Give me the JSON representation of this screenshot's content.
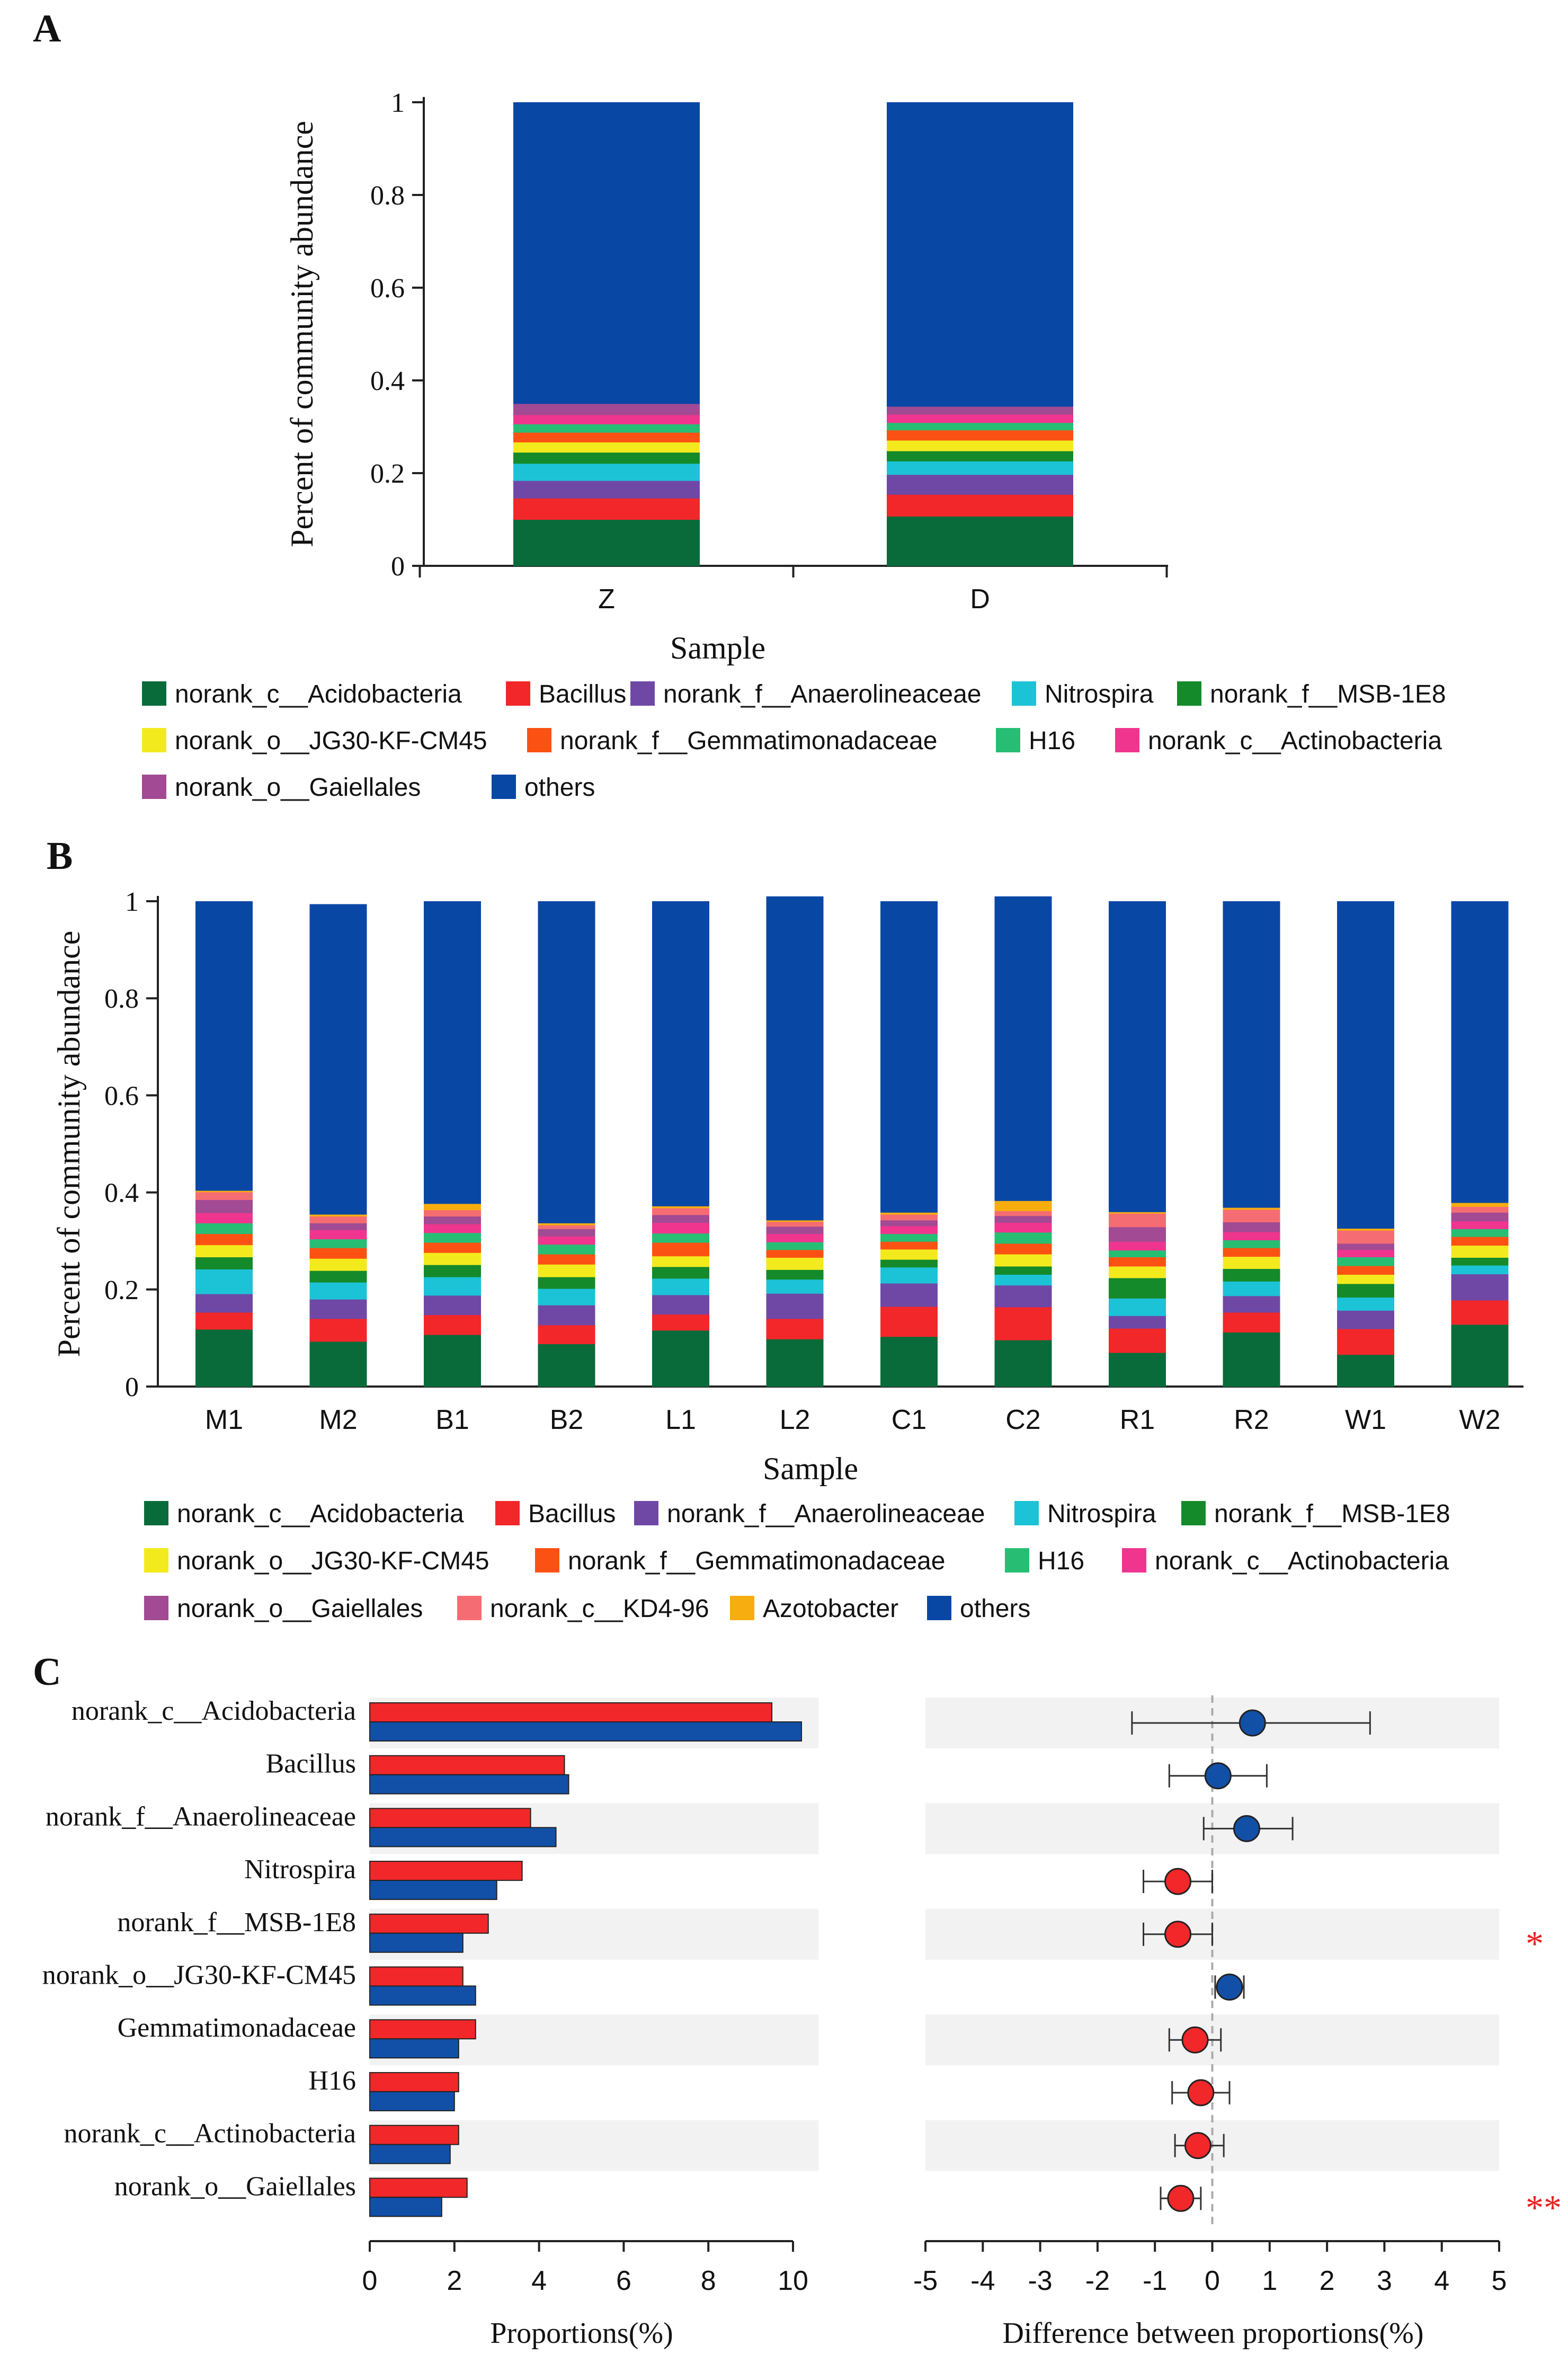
{
  "panel_labels": {
    "a": "A",
    "b": "B",
    "c": "C"
  },
  "colors": {
    "norank_c__Acidobacteria": "#0a6b3a",
    "Bacillus": "#f2272a",
    "norank_f__Anaerolineaceae": "#6f48a6",
    "Nitrospira": "#1cc3d6",
    "norank_f__MSB-1E8": "#148a2a",
    "norank_o__JG30-KF-CM45": "#f3ea1e",
    "norank_f__Gemmatimonadaceae": "#fb5213",
    "H16": "#27be74",
    "norank_c__Actinobacteria": "#f0358f",
    "norank_o__Gaiellales": "#a24a93",
    "norank_c__KD4-96": "#f56d72",
    "Azotobacter": "#f7ad0f",
    "others": "#0947a5",
    "group_red": "#f2272a",
    "group_blue": "#1250a8",
    "significance": "#e8231f",
    "row_shade": "#f2f2f2"
  },
  "chart_data": [
    {
      "type": "bar",
      "stacked": true,
      "panel": "A",
      "ylabel": "Percent of community abundance",
      "xlabel": "Sample",
      "ylim": [
        0,
        1
      ],
      "yticks": [
        "0",
        "0.2",
        "0.4",
        "0.6",
        "0.8",
        "1"
      ],
      "categories": [
        "Z",
        "D"
      ],
      "series": [
        {
          "name": "norank_c__Acidobacteria",
          "values": [
            0.1,
            0.107
          ]
        },
        {
          "name": "Bacillus",
          "values": [
            0.046,
            0.047
          ]
        },
        {
          "name": "norank_f__Anaerolineaceae",
          "values": [
            0.038,
            0.043
          ]
        },
        {
          "name": "Nitrospira",
          "values": [
            0.037,
            0.029
          ]
        },
        {
          "name": "norank_f__MSB-1E8",
          "values": [
            0.024,
            0.022
          ]
        },
        {
          "name": "norank_o__JG30-KF-CM45",
          "values": [
            0.022,
            0.023
          ]
        },
        {
          "name": "norank_f__Gemmatimonadaceae",
          "values": [
            0.021,
            0.022
          ]
        },
        {
          "name": "H16",
          "values": [
            0.018,
            0.016
          ]
        },
        {
          "name": "norank_c__Actinobacteria",
          "values": [
            0.02,
            0.018
          ]
        },
        {
          "name": "norank_o__Gaiellales",
          "values": [
            0.024,
            0.017
          ]
        },
        {
          "name": "others",
          "values": [
            0.65,
            0.656
          ]
        }
      ],
      "legend": [
        "norank_c__Acidobacteria",
        "Bacillus",
        "norank_f__Anaerolineaceae",
        "Nitrospira",
        "norank_f__MSB-1E8",
        "norank_o__JG30-KF-CM45",
        "norank_f__Gemmatimonadaceae",
        "H16",
        "norank_c__Actinobacteria",
        "norank_o__Gaiellales",
        "others"
      ]
    },
    {
      "type": "bar",
      "stacked": true,
      "panel": "B",
      "ylabel": "Percent of community abundance",
      "xlabel": "Sample",
      "ylim": [
        0,
        1
      ],
      "yticks": [
        "0",
        "0.2",
        "0.4",
        "0.6",
        "0.8",
        "1"
      ],
      "categories": [
        "M1",
        "M2",
        "B1",
        "B2",
        "L1",
        "L2",
        "C1",
        "C2",
        "R1",
        "R2",
        "W1",
        "W2"
      ],
      "series": [
        {
          "name": "norank_c__Acidobacteria",
          "values": [
            0.118,
            0.093,
            0.107,
            0.088,
            0.116,
            0.098,
            0.103,
            0.096,
            0.07,
            0.112,
            0.066,
            0.128
          ]
        },
        {
          "name": "Bacillus",
          "values": [
            0.035,
            0.047,
            0.041,
            0.039,
            0.033,
            0.042,
            0.062,
            0.068,
            0.05,
            0.041,
            0.053,
            0.05
          ]
        },
        {
          "name": "norank_f__Anaerolineaceae",
          "values": [
            0.038,
            0.04,
            0.04,
            0.041,
            0.04,
            0.052,
            0.048,
            0.045,
            0.026,
            0.034,
            0.038,
            0.054
          ]
        },
        {
          "name": "Nitrospira",
          "values": [
            0.051,
            0.035,
            0.038,
            0.034,
            0.034,
            0.029,
            0.033,
            0.022,
            0.036,
            0.03,
            0.027,
            0.018
          ]
        },
        {
          "name": "norank_f__MSB-1E8",
          "values": [
            0.025,
            0.024,
            0.025,
            0.024,
            0.024,
            0.02,
            0.016,
            0.017,
            0.042,
            0.026,
            0.028,
            0.016
          ]
        },
        {
          "name": "norank_o__JG30-KF-CM45",
          "values": [
            0.025,
            0.025,
            0.025,
            0.026,
            0.022,
            0.025,
            0.021,
            0.025,
            0.024,
            0.025,
            0.019,
            0.025
          ]
        },
        {
          "name": "norank_f__Gemmatimonadaceae",
          "values": [
            0.023,
            0.022,
            0.021,
            0.021,
            0.028,
            0.016,
            0.016,
            0.022,
            0.019,
            0.018,
            0.018,
            0.018
          ]
        },
        {
          "name": "H16",
          "values": [
            0.022,
            0.018,
            0.02,
            0.02,
            0.019,
            0.016,
            0.016,
            0.023,
            0.014,
            0.016,
            0.018,
            0.016
          ]
        },
        {
          "name": "norank_c__Actinobacteria",
          "values": [
            0.021,
            0.019,
            0.018,
            0.017,
            0.022,
            0.017,
            0.016,
            0.02,
            0.018,
            0.017,
            0.015,
            0.016
          ]
        },
        {
          "name": "norank_o__Gaiellales",
          "values": [
            0.027,
            0.014,
            0.016,
            0.015,
            0.016,
            0.015,
            0.012,
            0.014,
            0.03,
            0.02,
            0.013,
            0.018
          ]
        },
        {
          "name": "norank_c__KD4-96",
          "values": [
            0.016,
            0.014,
            0.013,
            0.008,
            0.014,
            0.01,
            0.012,
            0.01,
            0.028,
            0.026,
            0.027,
            0.012
          ]
        },
        {
          "name": "Azotobacter",
          "values": [
            0.003,
            0.004,
            0.013,
            0.004,
            0.004,
            0.003,
            0.004,
            0.021,
            0.003,
            0.004,
            0.004,
            0.008
          ]
        },
        {
          "name": "others",
          "values": [
            0.596,
            0.639,
            0.623,
            0.663,
            0.628,
            0.667,
            0.641,
            0.627,
            0.64,
            0.631,
            0.674,
            0.621
          ]
        }
      ],
      "legend": [
        "norank_c__Acidobacteria",
        "Bacillus",
        "norank_f__Anaerolineaceae",
        "Nitrospira",
        "norank_f__MSB-1E8",
        "norank_o__JG30-KF-CM45",
        "norank_f__Gemmatimonadaceae",
        "H16",
        "norank_c__Actinobacteria",
        "norank_o__Gaiellales",
        "norank_c__KD4-96",
        "Azotobacter",
        "others"
      ]
    },
    {
      "type": "bar",
      "orientation": "horizontal",
      "panel": "C-left",
      "xlabel": "Proportions(%)",
      "xlim": [
        0,
        10
      ],
      "xticks": [
        "0",
        "2",
        "4",
        "6",
        "8",
        "10"
      ],
      "categories": [
        "norank_c__Acidobacteria",
        "Bacillus",
        "norank_f__Anaerolineaceae",
        "Nitrospira",
        "norank_f__MSB-1E8",
        "norank_o__JG30-KF-CM45",
        "Gemmatimonadaceae",
        "H16",
        "norank_c__Actinobacteria",
        "norank_o__Gaiellales"
      ],
      "series": [
        {
          "name": "red group",
          "values": [
            9.5,
            4.6,
            3.8,
            3.6,
            2.8,
            2.2,
            2.5,
            2.1,
            2.1,
            2.3
          ]
        },
        {
          "name": "blue group",
          "values": [
            10.2,
            4.7,
            4.4,
            3.0,
            2.2,
            2.5,
            2.1,
            2.0,
            1.9,
            1.7
          ]
        }
      ]
    },
    {
      "type": "scatter",
      "subtype": "errorbar",
      "panel": "C-right",
      "xlabel": "Difference between proportions(%)",
      "xlim": [
        -5,
        5
      ],
      "xticks": [
        "-5",
        "-4",
        "-3",
        "-2",
        "-1",
        "0",
        "1",
        "2",
        "3",
        "4",
        "5"
      ],
      "categories": [
        "norank_c__Acidobacteria",
        "Bacillus",
        "norank_f__Anaerolineaceae",
        "Nitrospira",
        "norank_f__MSB-1E8",
        "norank_o__JG30-KF-CM45",
        "Gemmatimonadaceae",
        "H16",
        "norank_c__Actinobacteria",
        "norank_o__Gaiellales"
      ],
      "points": [
        {
          "diff": 0.7,
          "lo": -1.4,
          "hi": 2.75,
          "group": "blue"
        },
        {
          "diff": 0.1,
          "lo": -0.75,
          "hi": 0.95,
          "group": "blue"
        },
        {
          "diff": 0.6,
          "lo": -0.15,
          "hi": 1.4,
          "group": "blue"
        },
        {
          "diff": -0.6,
          "lo": -1.2,
          "hi": 0.0,
          "group": "red"
        },
        {
          "diff": -0.6,
          "lo": -1.2,
          "hi": 0.0,
          "group": "red"
        },
        {
          "diff": 0.3,
          "lo": 0.05,
          "hi": 0.55,
          "group": "blue"
        },
        {
          "diff": -0.3,
          "lo": -0.75,
          "hi": 0.15,
          "group": "red"
        },
        {
          "diff": -0.2,
          "lo": -0.7,
          "hi": 0.3,
          "group": "red"
        },
        {
          "diff": -0.25,
          "lo": -0.65,
          "hi": 0.2,
          "group": "red"
        },
        {
          "diff": -0.55,
          "lo": -0.9,
          "hi": -0.2,
          "group": "red"
        }
      ],
      "significance": [
        "",
        "",
        "",
        "",
        "*",
        "",
        "",
        "",
        "",
        "**"
      ]
    }
  ]
}
